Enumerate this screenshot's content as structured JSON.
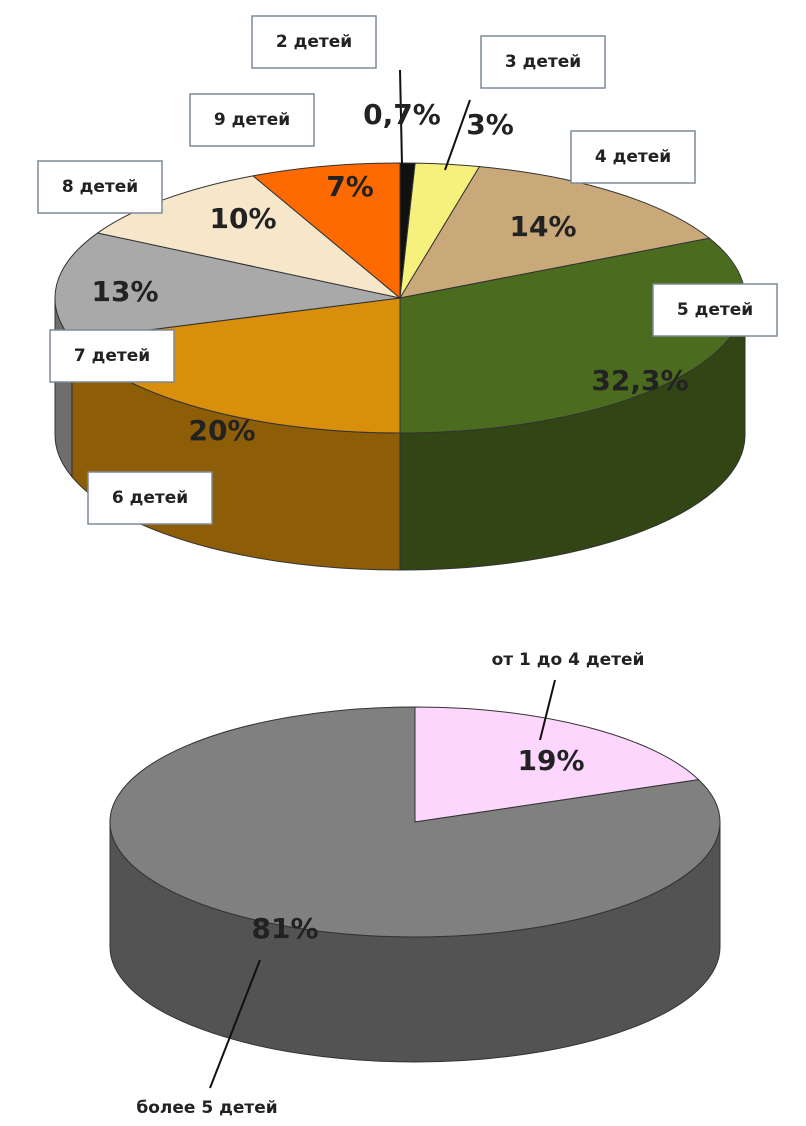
{
  "chart_data": [
    {
      "type": "pie3d",
      "categories": [
        "2 детей",
        "3 детей",
        "4 детей",
        "5 детей",
        "6 детей",
        "7 детей",
        "8 детей",
        "9 детей"
      ],
      "values": [
        0.7,
        3,
        14,
        32.3,
        20,
        13,
        10,
        7
      ],
      "value_labels": [
        "0,7%",
        "3%",
        "14%",
        "32,3%",
        "20%",
        "13%",
        "10%",
        "7%"
      ],
      "colors": [
        "#111111",
        "#f6f07c",
        "#c9a97a",
        "#4b6b1f",
        "#d98f0b",
        "#a9a9a9",
        "#f6e7cb",
        "#ff6a00"
      ]
    },
    {
      "type": "pie3d",
      "categories": [
        "от 1 до 4 детей",
        "более 5 детей"
      ],
      "values": [
        19,
        81
      ],
      "value_labels": [
        "19%",
        "81%"
      ],
      "colors": [
        "#fcd6fc",
        "#808080"
      ]
    }
  ]
}
